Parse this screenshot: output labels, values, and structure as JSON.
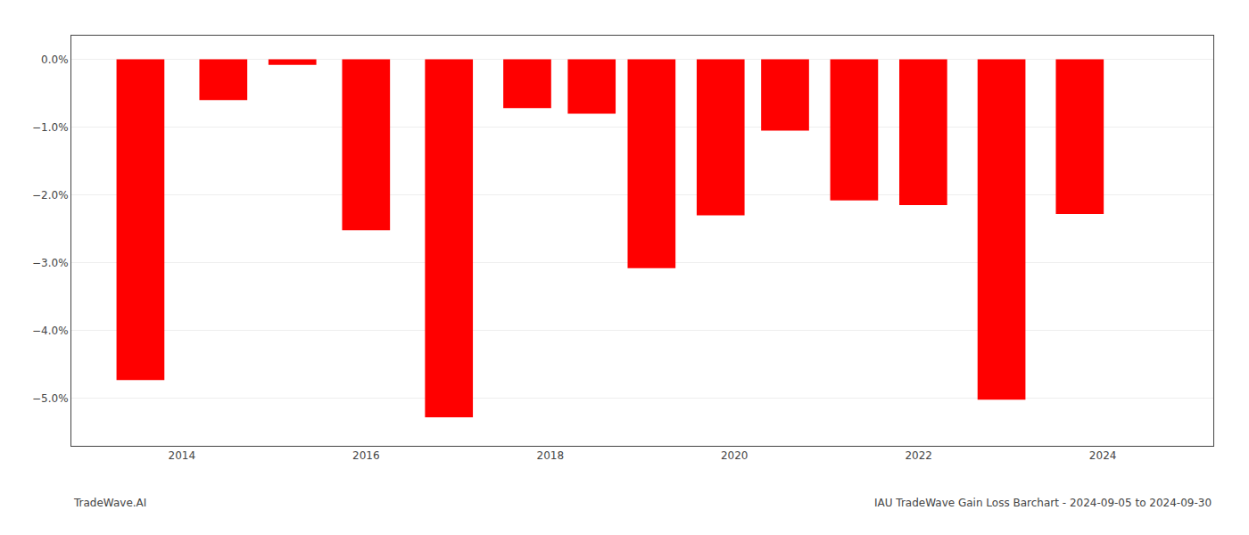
{
  "chart_data": {
    "type": "bar",
    "x": [
      2013.55,
      2014.45,
      2015.2,
      2016.0,
      2016.9,
      2017.75,
      2018.45,
      2019.1,
      2019.85,
      2020.55,
      2021.3,
      2022.05,
      2022.9,
      2023.75
    ],
    "values": [
      -4.73,
      -0.6,
      -0.08,
      -2.52,
      -5.28,
      -0.72,
      -0.8,
      -3.08,
      -2.3,
      -1.05,
      -2.08,
      -2.15,
      -5.02,
      -2.28
    ],
    "color": "#ff0000",
    "xlim": [
      2012.8,
      2025.2
    ],
    "xticks": [
      2014,
      2016,
      2018,
      2020,
      2022,
      2024
    ],
    "ylim": [
      -5.7,
      0.35
    ],
    "yticks": [
      {
        "value": 0.0,
        "label": "0.0%"
      },
      {
        "value": -1.0,
        "label": "−1.0%"
      },
      {
        "value": -2.0,
        "label": "−2.0%"
      },
      {
        "value": -3.0,
        "label": "−3.0%"
      },
      {
        "value": -4.0,
        "label": "−4.0%"
      },
      {
        "value": -5.0,
        "label": "−5.0%"
      }
    ],
    "grid": "y",
    "annotations": [
      "TradeWave.AI",
      "IAU TradeWave Gain Loss Barchart - 2024-09-05 to 2024-09-30"
    ]
  }
}
